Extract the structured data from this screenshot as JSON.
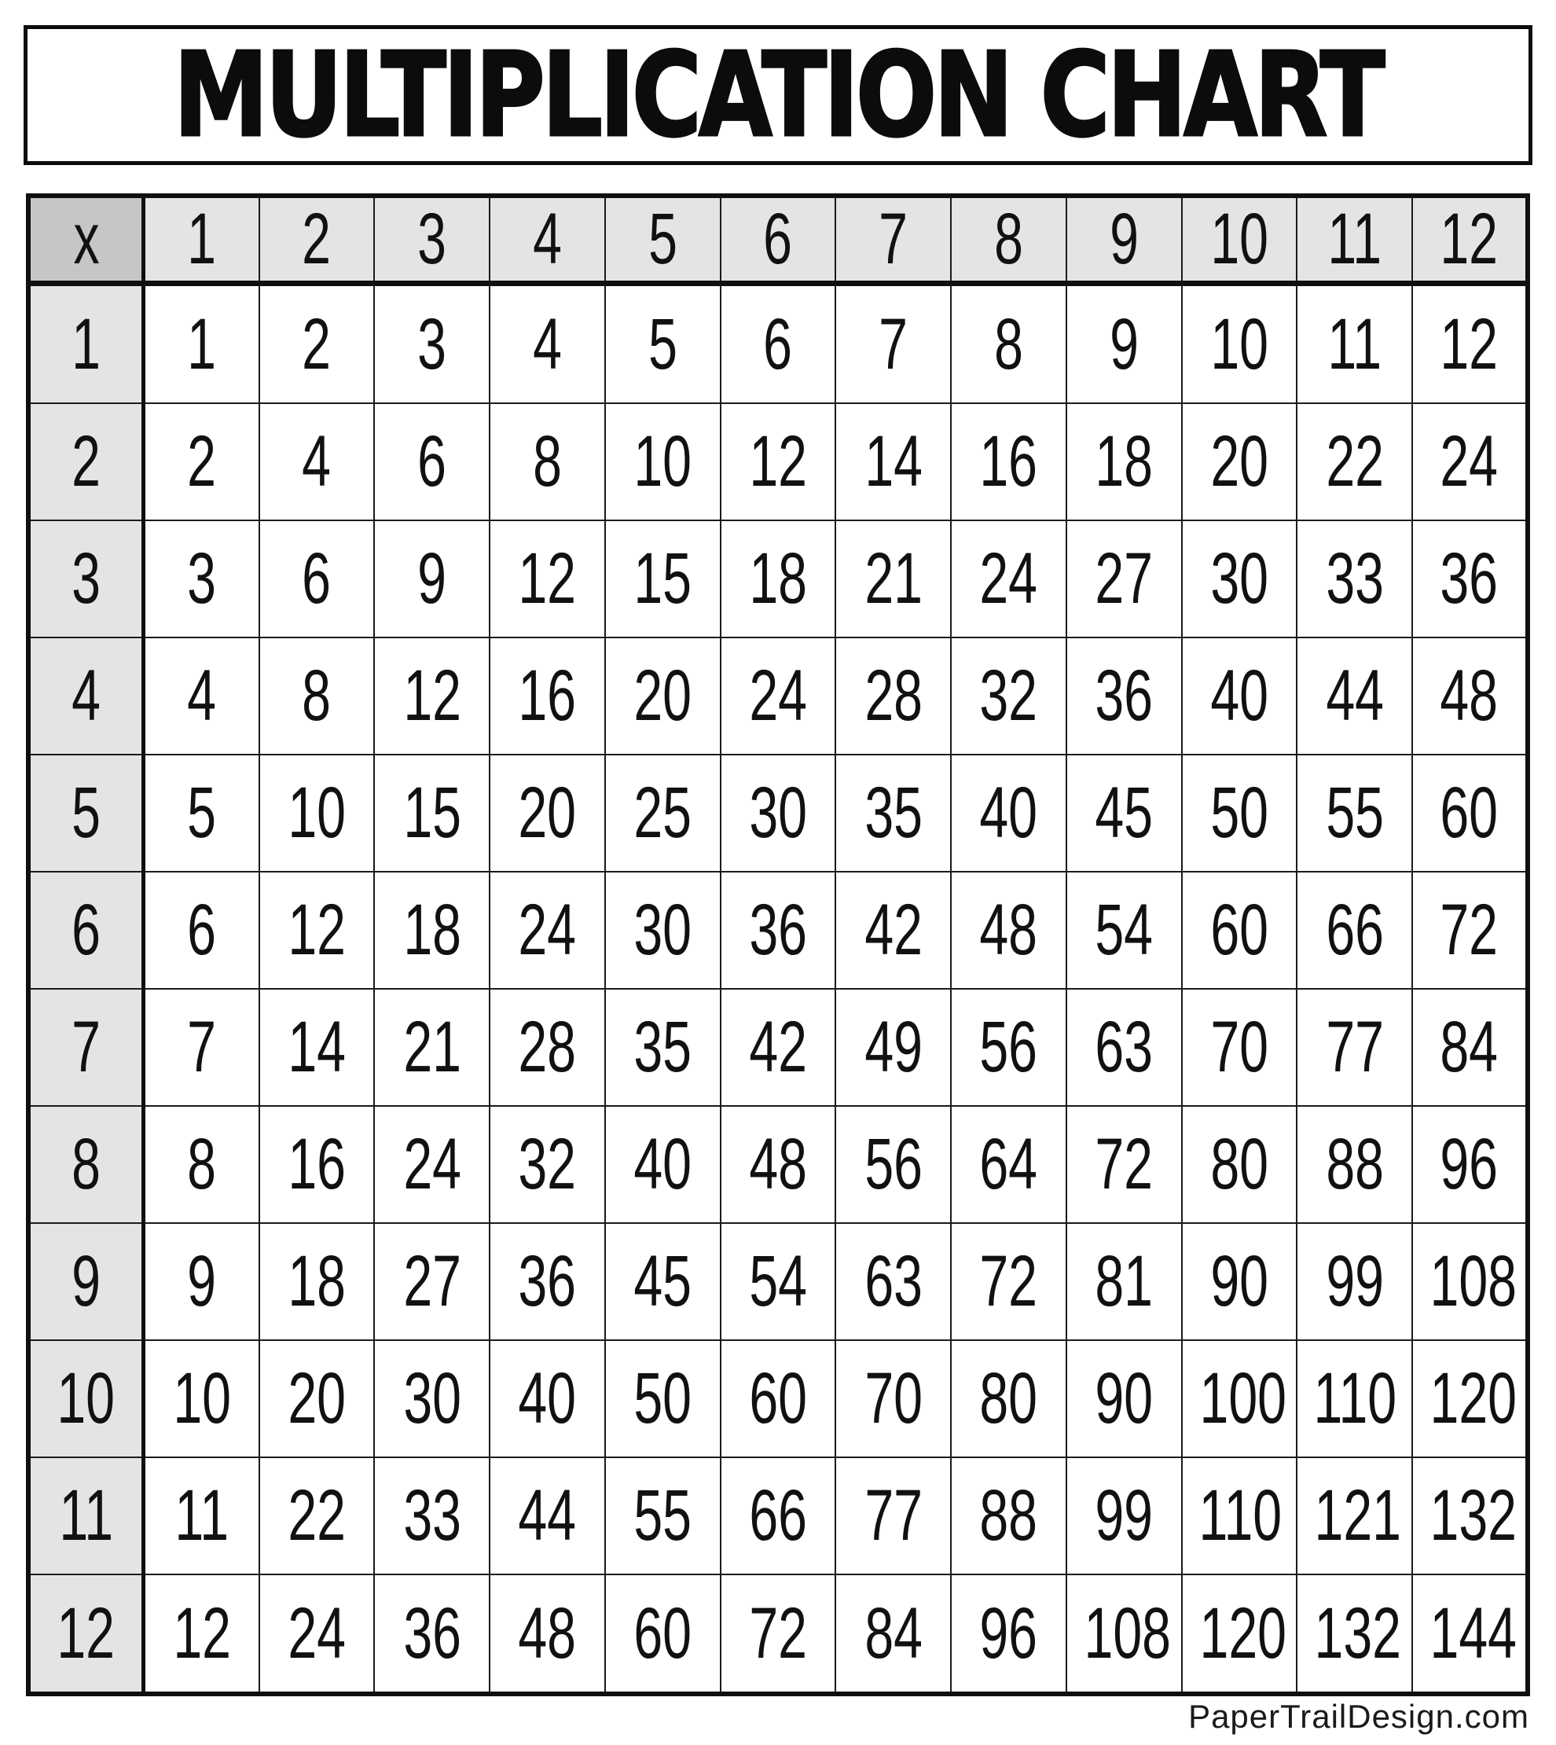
{
  "title": "MULTIPLICATION CHART",
  "footer": "PaperTrailDesign.com",
  "colors": {
    "page_bg": "#ffffff",
    "border": "#101010",
    "grid_line": "#1b1b1b",
    "corner_bg": "#c6c6c6",
    "header_bg": "#e4e4e4",
    "cell_bg": "#ffffff",
    "text": "#111111"
  },
  "chart_data": {
    "type": "table",
    "title": "MULTIPLICATION CHART",
    "corner_label": "x",
    "col_headers": [
      "1",
      "2",
      "3",
      "4",
      "5",
      "6",
      "7",
      "8",
      "9",
      "10",
      "11",
      "12"
    ],
    "row_headers": [
      "1",
      "2",
      "3",
      "4",
      "5",
      "6",
      "7",
      "8",
      "9",
      "10",
      "11",
      "12"
    ],
    "rows": [
      [
        1,
        2,
        3,
        4,
        5,
        6,
        7,
        8,
        9,
        10,
        11,
        12
      ],
      [
        2,
        4,
        6,
        8,
        10,
        12,
        14,
        16,
        18,
        20,
        22,
        24
      ],
      [
        3,
        6,
        9,
        12,
        15,
        18,
        21,
        24,
        27,
        30,
        33,
        36
      ],
      [
        4,
        8,
        12,
        16,
        20,
        24,
        28,
        32,
        36,
        40,
        44,
        48
      ],
      [
        5,
        10,
        15,
        20,
        25,
        30,
        35,
        40,
        45,
        50,
        55,
        60
      ],
      [
        6,
        12,
        18,
        24,
        30,
        36,
        42,
        48,
        54,
        60,
        66,
        72
      ],
      [
        7,
        14,
        21,
        28,
        35,
        42,
        49,
        56,
        63,
        70,
        77,
        84
      ],
      [
        8,
        16,
        24,
        32,
        40,
        48,
        56,
        64,
        72,
        80,
        88,
        96
      ],
      [
        9,
        18,
        27,
        36,
        45,
        54,
        63,
        72,
        81,
        90,
        99,
        108
      ],
      [
        10,
        20,
        30,
        40,
        50,
        60,
        70,
        80,
        90,
        100,
        110,
        120
      ],
      [
        11,
        22,
        33,
        44,
        55,
        66,
        77,
        88,
        99,
        110,
        121,
        132
      ],
      [
        12,
        24,
        36,
        48,
        60,
        72,
        84,
        96,
        108,
        120,
        132,
        144
      ]
    ]
  }
}
